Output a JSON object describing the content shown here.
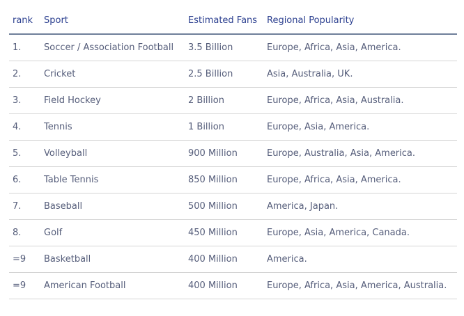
{
  "table": {
    "headers": {
      "rank": "rank",
      "sport": "Sport",
      "fans": "Estimated Fans",
      "region": "Regional Popularity"
    },
    "rows": [
      {
        "rank": "1.",
        "sport": "Soccer / Association Football",
        "fans": "3.5 Billion",
        "region": "Europe, Africa, Asia, America."
      },
      {
        "rank": "2.",
        "sport": "Cricket",
        "fans": "2.5 Billion",
        "region": "Asia, Australia, UK."
      },
      {
        "rank": "3.",
        "sport": "Field Hockey",
        "fans": "2 Billion",
        "region": "Europe, Africa, Asia, Australia."
      },
      {
        "rank": "4.",
        "sport": "Tennis",
        "fans": "1 Billion",
        "region": "Europe, Asia, America."
      },
      {
        "rank": "5.",
        "sport": "Volleyball",
        "fans": "900 Million",
        "region": "Europe, Australia, Asia, America."
      },
      {
        "rank": "6.",
        "sport": "Table Tennis",
        "fans": "850 Million",
        "region": "Europe, Africa, Asia, America."
      },
      {
        "rank": "7.",
        "sport": "Baseball",
        "fans": "500 Million",
        "region": "America, Japan."
      },
      {
        "rank": "8.",
        "sport": "Golf",
        "fans": "450 Million",
        "region": "Europe, Asia, America, Canada."
      },
      {
        "rank": "=9",
        "sport": "Basketball",
        "fans": "400 Million",
        "region": "America."
      },
      {
        "rank": "=9",
        "sport": "American Football",
        "fans": "400 Million",
        "region": "Europe, Africa, Asia, America, Australia."
      }
    ]
  }
}
